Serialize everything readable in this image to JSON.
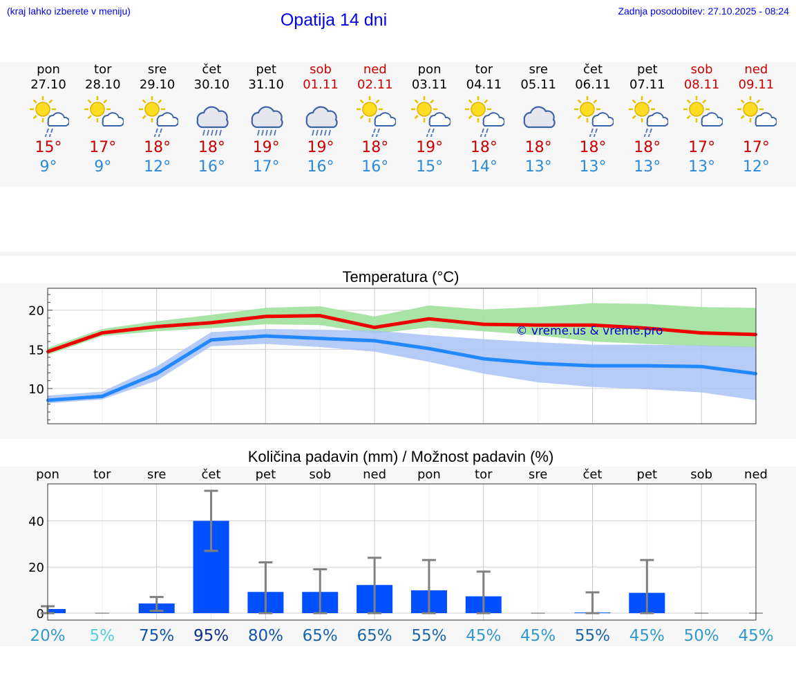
{
  "header": {
    "note": "(kraj lahko izberete v meniju)",
    "title": "Opatija 14 dni",
    "updated": "Zadnja posodobitev: 27.10.2025 - 08:24"
  },
  "forecast": [
    {
      "day": "pon",
      "date": "27.10",
      "icon": "sun-cloud-rain-icon",
      "max": "15°",
      "min": "9°",
      "weekend": false
    },
    {
      "day": "tor",
      "date": "28.10",
      "icon": "sun-cloud-icon",
      "max": "17°",
      "min": "9°",
      "weekend": false
    },
    {
      "day": "sre",
      "date": "29.10",
      "icon": "sun-cloud-rain-icon",
      "max": "18°",
      "min": "12°",
      "weekend": false
    },
    {
      "day": "čet",
      "date": "30.10",
      "icon": "cloud-rain-icon",
      "max": "18°",
      "min": "16°",
      "weekend": false
    },
    {
      "day": "pet",
      "date": "31.10",
      "icon": "cloud-rain-icon",
      "max": "19°",
      "min": "17°",
      "weekend": false
    },
    {
      "day": "sob",
      "date": "01.11",
      "icon": "cloud-rain-icon",
      "max": "19°",
      "min": "16°",
      "weekend": true
    },
    {
      "day": "ned",
      "date": "02.11",
      "icon": "sun-cloud-rain-icon",
      "max": "18°",
      "min": "16°",
      "weekend": true
    },
    {
      "day": "pon",
      "date": "03.11",
      "icon": "sun-cloud-rain-icon",
      "max": "19°",
      "min": "15°",
      "weekend": false
    },
    {
      "day": "tor",
      "date": "04.11",
      "icon": "sun-cloud-rain-icon",
      "max": "18°",
      "min": "14°",
      "weekend": false
    },
    {
      "day": "sre",
      "date": "05.11",
      "icon": "cloud-icon",
      "max": "18°",
      "min": "13°",
      "weekend": false
    },
    {
      "day": "čet",
      "date": "06.11",
      "icon": "sun-cloud-rain-icon",
      "max": "18°",
      "min": "13°",
      "weekend": false
    },
    {
      "day": "pet",
      "date": "07.11",
      "icon": "sun-cloud-rain-icon",
      "max": "18°",
      "min": "13°",
      "weekend": false
    },
    {
      "day": "sob",
      "date": "08.11",
      "icon": "sun-cloud-icon",
      "max": "17°",
      "min": "13°",
      "weekend": true
    },
    {
      "day": "ned",
      "date": "09.11",
      "icon": "sun-cloud-icon",
      "max": "17°",
      "min": "12°",
      "weekend": true
    }
  ],
  "colors": {
    "max_line": "#ee0000",
    "min_line": "#2288ff",
    "max_band": "#a4e2a0",
    "min_band": "#a9c3f4",
    "bar": "#0050ff",
    "err": "#808080",
    "watermark": "#0000cc"
  },
  "chart_data": [
    {
      "type": "line",
      "title": "Temperatura (°C)",
      "watermark": "© vreme.us & vreme.pro",
      "ylim": [
        5.5,
        22.8
      ],
      "yticks": [
        10,
        15,
        20
      ],
      "series": [
        {
          "values": [
            14.7,
            17.1,
            17.9,
            18.4,
            19.2,
            19.3,
            17.8,
            18.9,
            18.2,
            18.1,
            18.1,
            17.7,
            17.1,
            16.9
          ],
          "band_low": [
            14.3,
            16.7,
            17.3,
            17.7,
            18.2,
            18.1,
            17.0,
            17.8,
            17.3,
            16.8,
            16.0,
            15.7,
            15.4,
            15.2
          ],
          "band_high": [
            15.2,
            17.6,
            18.6,
            19.4,
            20.3,
            20.5,
            19.2,
            20.6,
            20.1,
            20.4,
            20.9,
            20.8,
            20.4,
            20.3
          ]
        },
        {
          "values": [
            8.5,
            9.0,
            11.9,
            16.2,
            16.7,
            16.4,
            16.1,
            15.1,
            13.8,
            13.2,
            12.9,
            12.9,
            12.8,
            11.9
          ],
          "band_low": [
            8.1,
            8.6,
            11.0,
            15.4,
            15.7,
            15.3,
            14.7,
            13.4,
            11.9,
            10.8,
            10.2,
            9.9,
            9.5,
            8.5
          ],
          "band_high": [
            9.1,
            9.6,
            12.8,
            17.2,
            17.6,
            17.5,
            17.4,
            16.8,
            16.3,
            15.9,
            15.6,
            15.6,
            15.5,
            15.3
          ]
        }
      ]
    },
    {
      "type": "bar",
      "title": "Količina padavin (mm) / Možnost padavin (%)",
      "categories": [
        "pon",
        "tor",
        "sre",
        "čet",
        "pet",
        "sob",
        "ned",
        "pon",
        "tor",
        "sre",
        "čet",
        "pet",
        "sob",
        "ned"
      ],
      "values": [
        1.8,
        0,
        4.2,
        40.0,
        9.2,
        9.2,
        12.2,
        9.9,
        7.3,
        0,
        0.3,
        8.8,
        0,
        0
      ],
      "err_low": [
        0,
        0,
        1,
        27,
        0,
        0,
        0,
        0,
        0,
        0,
        0,
        0,
        0,
        0
      ],
      "err_high": [
        3,
        0,
        7,
        53,
        22,
        19,
        24,
        23,
        18,
        0,
        9,
        23,
        0,
        0
      ],
      "ylim": [
        -3,
        56
      ],
      "yticks": [
        0,
        20,
        40
      ],
      "chance": [
        "20%",
        "5%",
        "75%",
        "95%",
        "80%",
        "65%",
        "65%",
        "55%",
        "45%",
        "45%",
        "55%",
        "45%",
        "50%",
        "45%"
      ],
      "chance_colors": [
        "#3399cc",
        "#55ccdd",
        "#1155aa",
        "#0a2e88",
        "#1155aa",
        "#1a66aa",
        "#1a66aa",
        "#1a66aa",
        "#3399cc",
        "#3399cc",
        "#1a66aa",
        "#3399cc",
        "#3399cc",
        "#3399cc"
      ]
    }
  ]
}
